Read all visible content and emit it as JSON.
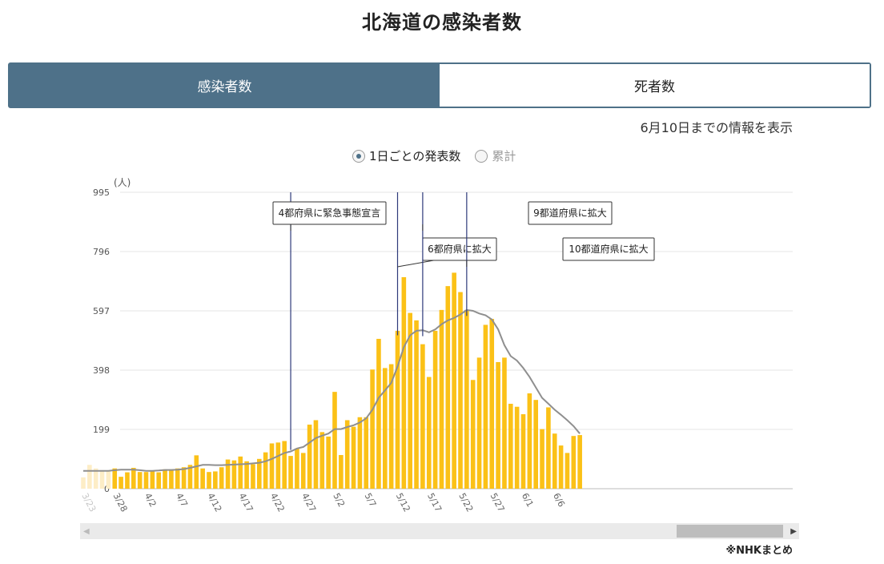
{
  "page": {
    "title": "北海道の感染者数"
  },
  "tabs": [
    {
      "label": "感染者数",
      "active": true
    },
    {
      "label": "死者数",
      "active": false
    }
  ],
  "date_note": "6月10日までの情報を表示",
  "radios": [
    {
      "label": "1日ごとの発表数",
      "selected": true
    },
    {
      "label": "累計",
      "selected": false
    }
  ],
  "source": "※NHKまとめ",
  "colors": {
    "bar": "#fbc117",
    "bar_faded": "#fdedc6",
    "avg_line": "#8f8f8f",
    "event_line": "#2e3a7a",
    "tab_active": "#4e7189"
  },
  "chart_data": {
    "type": "bar",
    "unit_label": "(人)",
    "ylim": [
      0,
      995
    ],
    "yticks": [
      0,
      199,
      398,
      597,
      796,
      995
    ],
    "grid": true,
    "x_tick_labels": [
      "3/23",
      "3/28",
      "4/2",
      "4/7",
      "4/12",
      "4/17",
      "4/22",
      "4/27",
      "5/2",
      "5/7",
      "5/12",
      "5/17",
      "5/22",
      "5/27",
      "6/1",
      "6/6"
    ],
    "first_date": "3/23",
    "faded_count": 5,
    "series": [
      {
        "values": [
          38,
          80,
          68,
          62,
          58,
          68,
          40,
          55,
          70,
          56,
          56,
          58,
          55,
          65,
          65,
          68,
          72,
          80,
          112,
          68,
          56,
          58,
          72,
          98,
          95,
          108,
          92,
          82,
          100,
          122,
          152,
          155,
          160,
          110,
          135,
          120,
          215,
          230,
          190,
          175,
          325,
          113,
          230,
          208,
          240,
          240,
          400,
          503,
          405,
          418,
          530,
          710,
          590,
          565,
          485,
          375,
          530,
          600,
          680,
          725,
          660,
          600,
          365,
          440,
          550,
          570,
          425,
          440,
          285,
          275,
          250,
          320,
          298,
          200,
          273,
          185,
          145,
          120,
          177,
          180
        ]
      },
      {
        "values": [
          60,
          60,
          60,
          60,
          60,
          62,
          64,
          64,
          64,
          62,
          60,
          60,
          61,
          63,
          63,
          64,
          66,
          70,
          75,
          80,
          80,
          79,
          79,
          80,
          81,
          82,
          83,
          85,
          87,
          92,
          100,
          110,
          120,
          125,
          135,
          140,
          155,
          170,
          178,
          185,
          200,
          200,
          207,
          213,
          222,
          236,
          265,
          305,
          330,
          355,
          410,
          475,
          515,
          530,
          532,
          525,
          535,
          552,
          565,
          573,
          585,
          600,
          597,
          588,
          582,
          568,
          535,
          482,
          445,
          430,
          405,
          375,
          340,
          305,
          285,
          265,
          248,
          230,
          210,
          185
        ]
      }
    ],
    "annotations": [
      {
        "label": "4都府県に緊急事態宣言",
        "date": "4/25"
      },
      {
        "label": "6都府県に拡大",
        "date": "5/12"
      },
      {
        "label": "9都道府県に拡大",
        "date": "5/16"
      },
      {
        "label": "10都道府県に拡大",
        "date": "5/23"
      }
    ]
  }
}
